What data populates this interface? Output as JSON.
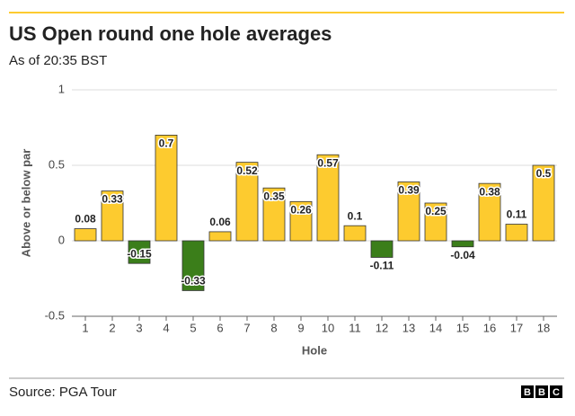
{
  "chart_data": {
    "type": "bar",
    "title": "US Open round one hole averages",
    "subtitle": "As of 20:35 BST",
    "y_label": "Above or below par",
    "x_label": "Hole",
    "source": "Source: PGA Tour",
    "logo": [
      "B",
      "B",
      "C"
    ],
    "categories": [
      "1",
      "2",
      "3",
      "4",
      "5",
      "6",
      "7",
      "8",
      "9",
      "10",
      "11",
      "12",
      "13",
      "14",
      "15",
      "16",
      "17",
      "18"
    ],
    "values": [
      0.08,
      0.33,
      -0.15,
      0.7,
      -0.33,
      0.06,
      0.52,
      0.35,
      0.26,
      0.57,
      0.1,
      -0.11,
      0.39,
      0.25,
      -0.04,
      0.38,
      0.11,
      0.5
    ],
    "positive_color": "#fdcb2f",
    "negative_color": "#3b7e1a",
    "ylim": [
      -0.5,
      1
    ],
    "yticks": [
      -0.5,
      0,
      0.5,
      1
    ],
    "grid": true
  }
}
